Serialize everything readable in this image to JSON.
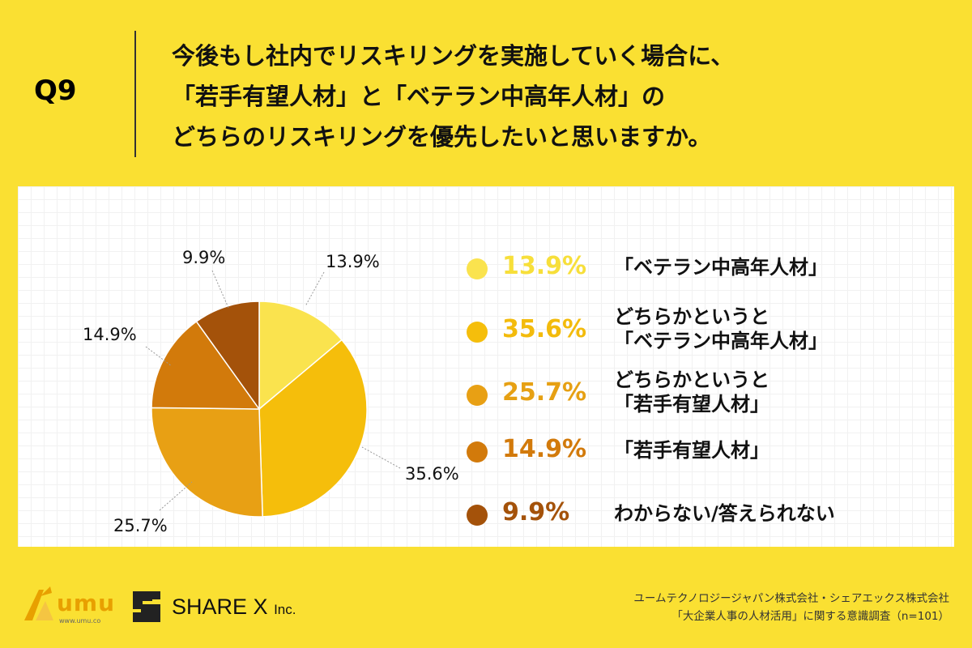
{
  "question": {
    "label": "Q9",
    "lines": [
      "今後もし社内でリスキリングを実施していく場合に、",
      "「若手有望人材」と「ベテラン中高年人材」の",
      "どちらのリスキリングを優先したいと思いますか。"
    ]
  },
  "chart_data": {
    "type": "pie",
    "title": "",
    "unit": "%",
    "slices": [
      {
        "label": "「ベテラン中高年人材」",
        "value": 13.9,
        "value_label": "13.9%",
        "color": "#fae34e"
      },
      {
        "label": "どちらかというと「ベテラン中高年人材」",
        "value": 35.6,
        "value_label": "35.6%",
        "color": "#f5be0b"
      },
      {
        "label": "どちらかというと「若手有望人材」",
        "value": 25.7,
        "value_label": "25.7%",
        "color": "#e8a014"
      },
      {
        "label": "「若手有望人材」",
        "value": 14.9,
        "value_label": "14.9%",
        "color": "#d27a0b"
      },
      {
        "label": "わからない/答えられない",
        "value": 9.9,
        "value_label": "9.9%",
        "color": "#a4520a"
      }
    ]
  },
  "legend": [
    {
      "pct": "13.9%",
      "lines": [
        "「ベテラン中高年人材」"
      ],
      "dot_color": "#fae34e",
      "pct_color": "#f7df3a"
    },
    {
      "pct": "35.6%",
      "lines": [
        "どちらかというと",
        "「ベテラン中高年人材」"
      ],
      "dot_color": "#f5be0b",
      "pct_color": "#f3bb0c"
    },
    {
      "pct": "25.7%",
      "lines": [
        "どちらかというと",
        "「若手有望人材」"
      ],
      "dot_color": "#e8a014",
      "pct_color": "#e6a013"
    },
    {
      "pct": "14.9%",
      "lines": [
        "「若手有望人材」"
      ],
      "dot_color": "#d27a0b",
      "pct_color": "#d27a0b"
    },
    {
      "pct": "9.9%",
      "lines": [
        "わからない/答えられない"
      ],
      "dot_color": "#a4520a",
      "pct_color": "#a4520a"
    }
  ],
  "logos": {
    "umu": {
      "name": "umu",
      "url": "www.umu.co"
    },
    "sharex": {
      "name": "SHARE X",
      "suffix": "Inc."
    }
  },
  "footer": {
    "line1": "ユームテクノロジージャパン株式会社・シェアエックス株式会社",
    "line2": "「大企業人事の人材活用」に関する意識調査（n=101）"
  }
}
